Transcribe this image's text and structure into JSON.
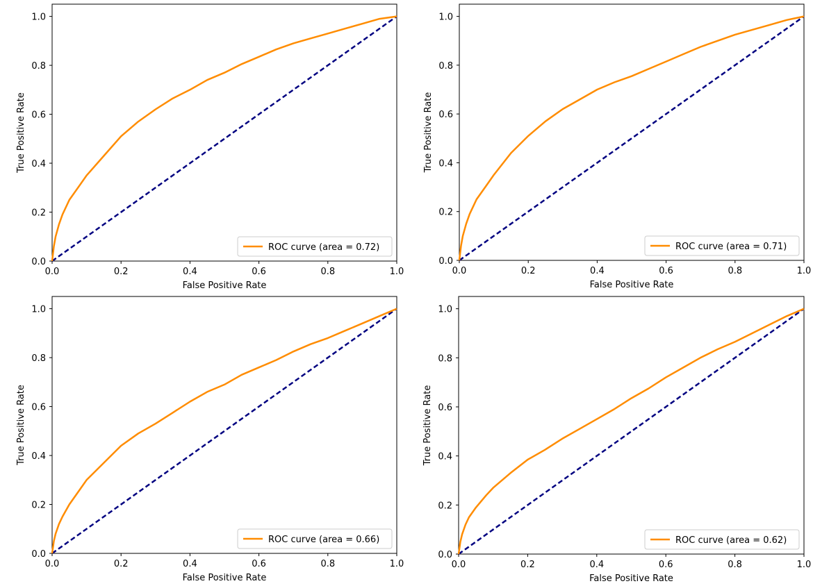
{
  "figure": {
    "colors": {
      "roc": "#ff8c00",
      "chance": "#000080",
      "axes": "#000000",
      "legend_border": "#cccccc",
      "background": "#ffffff"
    }
  },
  "chart_data": [
    {
      "type": "line",
      "title": "",
      "xlabel": "False Positive Rate",
      "ylabel": "True Positive Rate",
      "xlim": [
        0,
        1
      ],
      "ylim": [
        0,
        1.05
      ],
      "xticks": [
        "0.0",
        "0.2",
        "0.4",
        "0.6",
        "0.8",
        "1.0"
      ],
      "yticks": [
        "0.0",
        "0.2",
        "0.4",
        "0.6",
        "0.8",
        "1.0"
      ],
      "grid": false,
      "legend_position": "lower right",
      "series": [
        {
          "name": "ROC curve (area = 0.72)",
          "style": "solid",
          "color": "#ff8c00",
          "x": [
            0,
            0.005,
            0.01,
            0.02,
            0.03,
            0.05,
            0.08,
            0.1,
            0.15,
            0.2,
            0.25,
            0.3,
            0.35,
            0.4,
            0.45,
            0.5,
            0.55,
            0.6,
            0.65,
            0.7,
            0.75,
            0.8,
            0.85,
            0.9,
            0.95,
            1.0
          ],
          "y": [
            0,
            0.06,
            0.1,
            0.15,
            0.19,
            0.25,
            0.31,
            0.35,
            0.43,
            0.51,
            0.57,
            0.62,
            0.665,
            0.7,
            0.74,
            0.77,
            0.805,
            0.835,
            0.865,
            0.89,
            0.91,
            0.93,
            0.95,
            0.97,
            0.99,
            1.0
          ]
        },
        {
          "name": "",
          "style": "dashed",
          "color": "#000080",
          "x": [
            0,
            1
          ],
          "y": [
            0,
            1
          ]
        }
      ]
    },
    {
      "type": "line",
      "title": "",
      "xlabel": "False Positive Rate",
      "ylabel": "True Positive Rate",
      "xlim": [
        0,
        1
      ],
      "ylim": [
        0,
        1.05
      ],
      "xticks": [
        "0.0",
        "0.2",
        "0.4",
        "0.6",
        "0.8",
        "1.0"
      ],
      "yticks": [
        "0.0",
        "0.2",
        "0.4",
        "0.6",
        "0.8",
        "1.0"
      ],
      "grid": false,
      "legend_position": "lower right",
      "series": [
        {
          "name": "ROC curve (area = 0.71)",
          "style": "solid",
          "color": "#ff8c00",
          "x": [
            0,
            0.005,
            0.01,
            0.02,
            0.03,
            0.05,
            0.08,
            0.1,
            0.15,
            0.2,
            0.25,
            0.3,
            0.35,
            0.4,
            0.45,
            0.5,
            0.55,
            0.6,
            0.65,
            0.7,
            0.75,
            0.8,
            0.85,
            0.9,
            0.95,
            1.0
          ],
          "y": [
            0,
            0.06,
            0.1,
            0.15,
            0.19,
            0.25,
            0.31,
            0.35,
            0.44,
            0.51,
            0.57,
            0.62,
            0.66,
            0.7,
            0.73,
            0.755,
            0.785,
            0.815,
            0.845,
            0.875,
            0.9,
            0.925,
            0.945,
            0.965,
            0.985,
            1.0
          ]
        },
        {
          "name": "",
          "style": "dashed",
          "color": "#000080",
          "x": [
            0,
            1
          ],
          "y": [
            0,
            1
          ]
        }
      ]
    },
    {
      "type": "line",
      "title": "",
      "xlabel": "False Positive Rate",
      "ylabel": "True Positive Rate",
      "xlim": [
        0,
        1
      ],
      "ylim": [
        0,
        1.05
      ],
      "xticks": [
        "0.0",
        "0.2",
        "0.4",
        "0.6",
        "0.8",
        "1.0"
      ],
      "yticks": [
        "0.0",
        "0.2",
        "0.4",
        "0.6",
        "0.8",
        "1.0"
      ],
      "grid": false,
      "legend_position": "lower right",
      "series": [
        {
          "name": "ROC curve (area = 0.66)",
          "style": "solid",
          "color": "#ff8c00",
          "x": [
            0,
            0.005,
            0.01,
            0.02,
            0.03,
            0.05,
            0.08,
            0.1,
            0.15,
            0.2,
            0.25,
            0.3,
            0.35,
            0.4,
            0.45,
            0.5,
            0.55,
            0.6,
            0.65,
            0.7,
            0.75,
            0.8,
            0.85,
            0.9,
            0.95,
            1.0
          ],
          "y": [
            0,
            0.05,
            0.08,
            0.12,
            0.15,
            0.2,
            0.26,
            0.3,
            0.37,
            0.44,
            0.49,
            0.53,
            0.575,
            0.62,
            0.66,
            0.69,
            0.73,
            0.76,
            0.79,
            0.825,
            0.855,
            0.88,
            0.91,
            0.94,
            0.97,
            1.0
          ]
        },
        {
          "name": "",
          "style": "dashed",
          "color": "#000080",
          "x": [
            0,
            1
          ],
          "y": [
            0,
            1
          ]
        }
      ]
    },
    {
      "type": "line",
      "title": "",
      "xlabel": "False Positive Rate",
      "ylabel": "True Positive Rate",
      "xlim": [
        0,
        1
      ],
      "ylim": [
        0,
        1.05
      ],
      "xticks": [
        "0.0",
        "0.2",
        "0.4",
        "0.6",
        "0.8",
        "1.0"
      ],
      "yticks": [
        "0.0",
        "0.2",
        "0.4",
        "0.6",
        "0.8",
        "1.0"
      ],
      "grid": false,
      "legend_position": "lower right",
      "series": [
        {
          "name": "ROC curve (area = 0.62)",
          "style": "solid",
          "color": "#ff8c00",
          "x": [
            0,
            0.005,
            0.01,
            0.02,
            0.03,
            0.05,
            0.08,
            0.1,
            0.15,
            0.2,
            0.25,
            0.3,
            0.35,
            0.4,
            0.45,
            0.5,
            0.55,
            0.6,
            0.65,
            0.7,
            0.75,
            0.8,
            0.85,
            0.9,
            0.95,
            1.0
          ],
          "y": [
            0,
            0.05,
            0.08,
            0.12,
            0.15,
            0.19,
            0.24,
            0.27,
            0.33,
            0.385,
            0.425,
            0.47,
            0.51,
            0.55,
            0.59,
            0.635,
            0.675,
            0.72,
            0.76,
            0.8,
            0.835,
            0.865,
            0.9,
            0.935,
            0.97,
            1.0
          ]
        },
        {
          "name": "",
          "style": "dashed",
          "color": "#000080",
          "x": [
            0,
            1
          ],
          "y": [
            0,
            1
          ]
        }
      ]
    }
  ]
}
